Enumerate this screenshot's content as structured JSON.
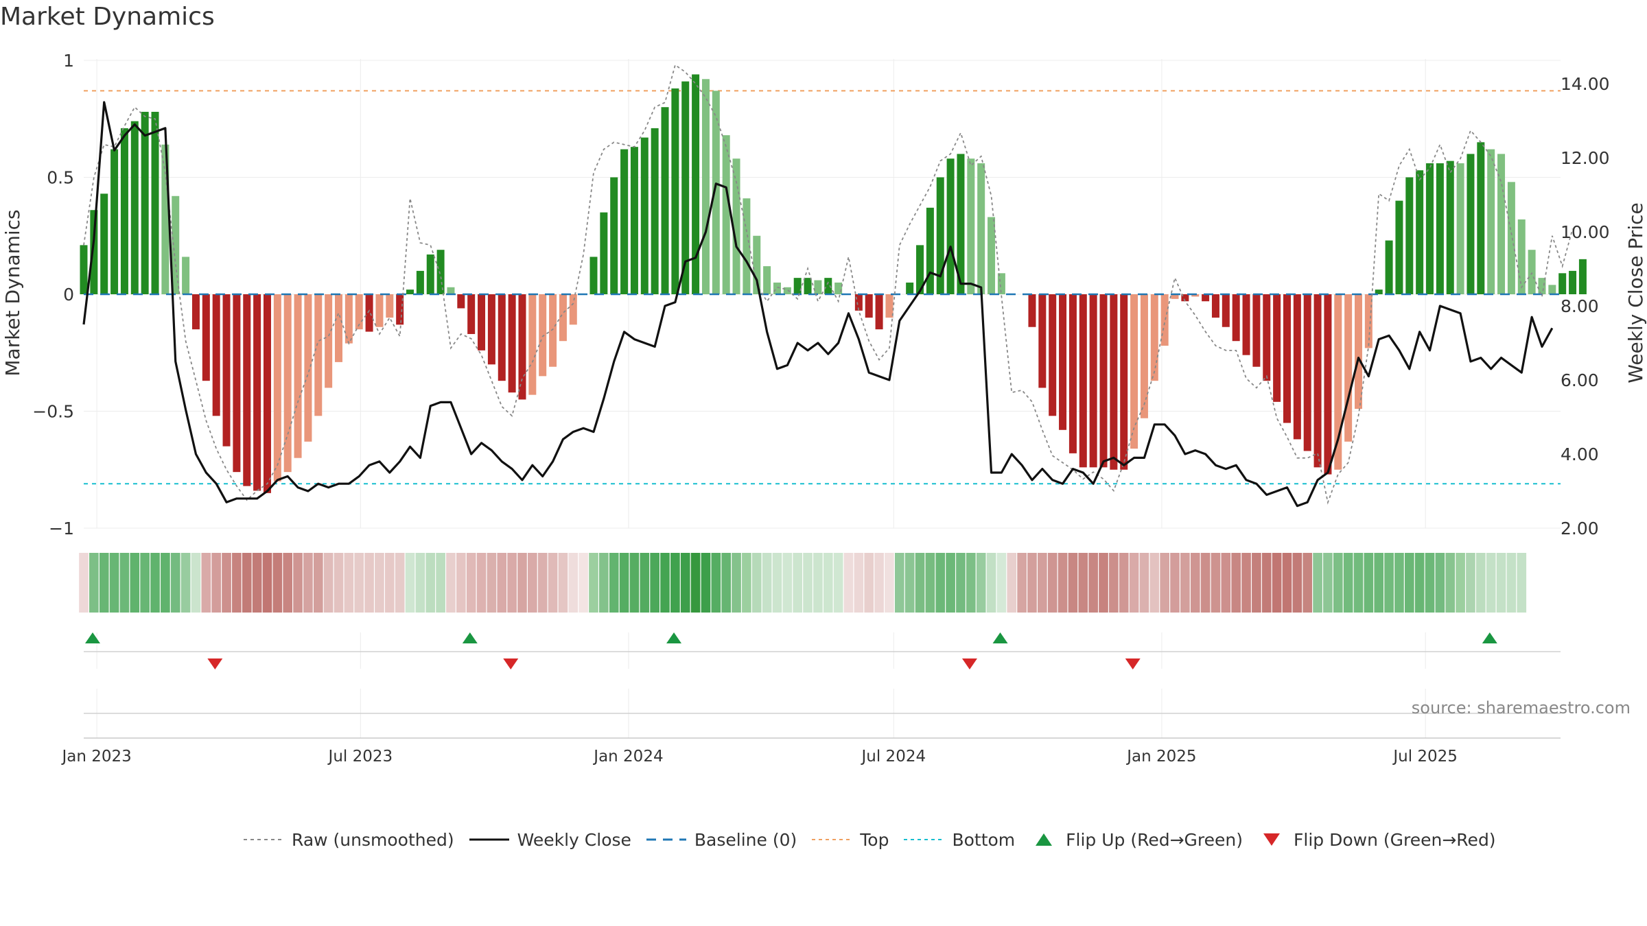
{
  "title": "Market Dynamics",
  "source": "source: sharemaestro.com",
  "legend": {
    "raw": "Raw (unsmoothed)",
    "close": "Weekly Close",
    "baseline": "Baseline (0)",
    "top": "Top",
    "bottom": "Bottom",
    "flip_up": "Flip Up (Red→Green)",
    "flip_down": "Flip Down (Green→Red)"
  },
  "colors": {
    "pos_strong": "#228b22",
    "pos_fade": "#80c080",
    "neg_strong": "#b22222",
    "neg_fade": "#e9967a",
    "raw": "#888888",
    "close": "#111111",
    "baseline": "#1f77b4",
    "top": "#f0a060",
    "bottom": "#17becf",
    "flip_up": "#1a9641",
    "flip_down": "#d62728"
  },
  "chart_data": {
    "type": "bar",
    "title": "Market Dynamics",
    "ylabel": "Market Dynamics",
    "y2label": "Weekly Close Price",
    "ylim": [
      -1,
      1
    ],
    "y2lim": [
      2.0,
      14.0
    ],
    "yticks": [
      "1",
      "0.5",
      "0",
      "−0.5",
      "−1"
    ],
    "y2ticks": [
      "14.00",
      "12.00",
      "10.00",
      "8.00",
      "6.00",
      "4.00",
      "2.00"
    ],
    "xticks": [
      {
        "label": "Jan 2023",
        "date": "2023-01-01"
      },
      {
        "label": "Jul 2023",
        "date": "2023-07-01"
      },
      {
        "label": "Jan 2024",
        "date": "2024-01-01"
      },
      {
        "label": "Jul 2024",
        "date": "2024-07-01"
      },
      {
        "label": "Jan 2025",
        "date": "2025-01-01"
      },
      {
        "label": "Jul 2025",
        "date": "2025-07-01"
      }
    ],
    "start_date": "2022-12-23",
    "week_days": 7,
    "top_line": 0.87,
    "bottom_line": -0.81,
    "baseline": 0,
    "grid": true,
    "legend_position": "bottom",
    "series": [
      {
        "name": "Market Dynamics",
        "values": [
          0.21,
          0.36,
          0.43,
          0.62,
          0.71,
          0.74,
          0.78,
          0.78,
          0.64,
          0.42,
          0.16,
          -0.15,
          -0.37,
          -0.52,
          -0.65,
          -0.76,
          -0.82,
          -0.84,
          -0.85,
          -0.8,
          -0.76,
          -0.7,
          -0.63,
          -0.52,
          -0.4,
          -0.29,
          -0.21,
          -0.15,
          -0.16,
          -0.14,
          -0.1,
          -0.13,
          0.02,
          0.1,
          0.17,
          0.19,
          0.03,
          -0.06,
          -0.17,
          -0.24,
          -0.3,
          -0.37,
          -0.42,
          -0.45,
          -0.43,
          -0.35,
          -0.31,
          -0.2,
          -0.13,
          0.0,
          0.16,
          0.35,
          0.5,
          0.62,
          0.63,
          0.67,
          0.71,
          0.8,
          0.88,
          0.91,
          0.94,
          0.92,
          0.87,
          0.68,
          0.58,
          0.41,
          0.25,
          0.12,
          0.05,
          0.03,
          0.07,
          0.07,
          0.06,
          0.07,
          0.05,
          0.0,
          -0.07,
          -0.1,
          -0.15,
          -0.1,
          0.0,
          0.05,
          0.21,
          0.37,
          0.5,
          0.58,
          0.6,
          0.58,
          0.56,
          0.33,
          0.09,
          0.0,
          0.0,
          -0.14,
          -0.4,
          -0.52,
          -0.58,
          -0.68,
          -0.74,
          -0.74,
          -0.74,
          -0.75,
          -0.75,
          -0.66,
          -0.53,
          -0.37,
          -0.22,
          -0.02,
          -0.03,
          -0.01,
          -0.03,
          -0.1,
          -0.14,
          -0.2,
          -0.26,
          -0.31,
          -0.37,
          -0.46,
          -0.55,
          -0.62,
          -0.67,
          -0.74,
          -0.77,
          -0.75,
          -0.63,
          -0.49,
          -0.23,
          0.02,
          0.23,
          0.4,
          0.5,
          0.53,
          0.56,
          0.56,
          0.57,
          0.56,
          0.6,
          0.65,
          0.62,
          0.6,
          0.48,
          0.32,
          0.19,
          0.07,
          0.04,
          0.09,
          0.1,
          0.15
        ]
      },
      {
        "name": "Raw (unsmoothed)",
        "values": [
          0.21,
          0.5,
          0.64,
          0.63,
          0.72,
          0.8,
          0.76,
          0.75,
          0.52,
          0.13,
          -0.2,
          -0.37,
          -0.54,
          -0.66,
          -0.75,
          -0.82,
          -0.88,
          -0.84,
          -0.81,
          -0.73,
          -0.6,
          -0.46,
          -0.34,
          -0.2,
          -0.18,
          -0.08,
          -0.21,
          -0.13,
          -0.07,
          -0.17,
          -0.1,
          -0.18,
          0.41,
          0.22,
          0.21,
          0.08,
          -0.23,
          -0.17,
          -0.19,
          -0.26,
          -0.37,
          -0.48,
          -0.52,
          -0.36,
          -0.29,
          -0.18,
          -0.15,
          -0.08,
          -0.04,
          0.17,
          0.52,
          0.62,
          0.65,
          0.64,
          0.63,
          0.7,
          0.8,
          0.82,
          0.98,
          0.95,
          0.9,
          0.84,
          0.76,
          0.63,
          0.48,
          0.27,
          0.04,
          -0.03,
          0.03,
          0.02,
          -0.02,
          0.11,
          -0.03,
          0.05,
          -0.03,
          0.16,
          -0.07,
          -0.2,
          -0.28,
          -0.23,
          0.21,
          0.3,
          0.38,
          0.46,
          0.57,
          0.6,
          0.69,
          0.55,
          0.59,
          0.42,
          -0.01,
          -0.42,
          -0.41,
          -0.46,
          -0.58,
          -0.69,
          -0.72,
          -0.75,
          -0.79,
          -0.76,
          -0.79,
          -0.84,
          -0.72,
          -0.57,
          -0.47,
          -0.33,
          -0.12,
          0.07,
          -0.03,
          -0.09,
          -0.16,
          -0.22,
          -0.24,
          -0.24,
          -0.36,
          -0.4,
          -0.35,
          -0.53,
          -0.61,
          -0.7,
          -0.7,
          -0.68,
          -0.89,
          -0.77,
          -0.72,
          -0.52,
          -0.22,
          0.43,
          0.4,
          0.55,
          0.62,
          0.49,
          0.54,
          0.64,
          0.52,
          0.58,
          0.7,
          0.65,
          0.59,
          0.48,
          0.26,
          0.03,
          0.09,
          -0.01,
          0.25,
          0.12,
          0.28
        ]
      },
      {
        "name": "Weekly Close",
        "values": [
          7.5,
          9.8,
          13.5,
          12.2,
          12.6,
          12.9,
          12.6,
          12.7,
          12.8,
          6.5,
          5.2,
          4.0,
          3.5,
          3.2,
          2.7,
          2.8,
          2.8,
          2.8,
          3.0,
          3.3,
          3.4,
          3.1,
          3.0,
          3.2,
          3.1,
          3.2,
          3.2,
          3.4,
          3.7,
          3.8,
          3.5,
          3.8,
          4.2,
          3.9,
          5.3,
          5.4,
          5.4,
          4.7,
          4.0,
          4.3,
          4.1,
          3.8,
          3.6,
          3.3,
          3.7,
          3.4,
          3.8,
          4.4,
          4.6,
          4.7,
          4.6,
          5.5,
          6.5,
          7.3,
          7.1,
          7.0,
          6.9,
          8.0,
          8.1,
          9.2,
          9.3,
          10.0,
          11.3,
          11.2,
          9.6,
          9.2,
          8.7,
          7.3,
          6.3,
          6.4,
          7.0,
          6.8,
          7.0,
          6.7,
          7.0,
          7.8,
          7.1,
          6.2,
          6.1,
          6.0,
          7.6,
          8.0,
          8.4,
          8.9,
          8.8,
          9.6,
          8.6,
          8.6,
          8.5,
          3.5,
          3.5,
          4.0,
          3.7,
          3.3,
          3.6,
          3.3,
          3.2,
          3.6,
          3.5,
          3.2,
          3.8,
          3.9,
          3.7,
          3.9,
          3.9,
          4.8,
          4.8,
          4.5,
          4.0,
          4.1,
          4.0,
          3.7,
          3.6,
          3.7,
          3.3,
          3.2,
          2.9,
          3.0,
          3.1,
          2.6,
          2.7,
          3.3,
          3.5,
          4.4,
          5.5,
          6.6,
          6.1,
          7.1,
          7.2,
          6.8,
          6.3,
          7.3,
          6.8,
          8.0,
          7.9,
          7.8,
          6.5,
          6.6,
          6.3,
          6.6,
          6.4,
          6.2,
          7.7,
          6.9,
          7.4
        ]
      }
    ],
    "band_colors": [
      "#eed8d8",
      "#7dbf86",
      "#68b674",
      "#68b674",
      "#6cb878",
      "#60b36d",
      "#68b674",
      "#60b36d",
      "#60b36d",
      "#74bb80",
      "#98cc9f",
      "#cbe4cd",
      "#d9aaa8",
      "#d39d9b",
      "#cd908d",
      "#c7837f",
      "#c27b77",
      "#c27b77",
      "#c17672",
      "#c47d79",
      "#c88581",
      "#cf9592",
      "#d5a3a1",
      "#d39f9c",
      "#e0bcba",
      "#e3c2c0",
      "#e6c9c7",
      "#e6cbc9",
      "#e6c9c7",
      "#e6cbc9",
      "#e6c9c7",
      "#e6cbc9",
      "#cfe6d1",
      "#c4e1c7",
      "#bcddbf",
      "#bcddbf",
      "#e8cfcd",
      "#e5c5c3",
      "#e0b9b7",
      "#ddb2b0",
      "#dab0ad",
      "#d9aaa8",
      "#d9aaa8",
      "#d6a5a2",
      "#d9aaa8",
      "#dbb0ae",
      "#e0bab8",
      "#e5c6c4",
      "#efdddc",
      "#f3e4e3",
      "#9ccf9f",
      "#83c28b",
      "#62b46f",
      "#55ad62",
      "#56ad62",
      "#53ab60",
      "#4ca85a",
      "#44a452",
      "#40a24e",
      "#3d9f4a",
      "#36983e",
      "#3d9f4a",
      "#55ad62",
      "#66b572",
      "#84c28c",
      "#9ccf9f",
      "#b6dab9",
      "#c6e2c9",
      "#cce5ce",
      "#d0e7d2",
      "#cce5ce",
      "#cce5ce",
      "#cce5ce",
      "#cde6cf",
      "#d0e7d2",
      "#eedcdb",
      "#ecd7d6",
      "#e8cfcd",
      "#ecd7d6",
      "#f0e0df",
      "#8fc797",
      "#8bc593",
      "#7abd83",
      "#77bc80",
      "#6cb878",
      "#6cb878",
      "#74bb80",
      "#7dbf86",
      "#98cc9f",
      "#c2e0c5",
      "#d5e9d7",
      "#e8cfcd",
      "#d6a5a2",
      "#d39f9c",
      "#d39f9c",
      "#cf9592",
      "#cc8f8b",
      "#c88783",
      "#c88783",
      "#c88783",
      "#c7837f",
      "#cc8f8b",
      "#d09794",
      "#d9aaa8",
      "#dbb1af",
      "#e3c2c0",
      "#d6a5a2",
      "#d39d9b",
      "#d39f9c",
      "#cf9592",
      "#cc8f8b",
      "#ce938f",
      "#cd908d",
      "#c88783",
      "#c88581",
      "#c4807c",
      "#c27b77",
      "#c17672",
      "#c17672",
      "#c27b77",
      "#c68580",
      "#8dc695",
      "#8dc695",
      "#7dbf86",
      "#72bb7d",
      "#72bb7d",
      "#6cb878",
      "#6cb878",
      "#72bb7d",
      "#72bb7d",
      "#6ab776",
      "#68b674",
      "#6cb878",
      "#74bb80",
      "#88c48f",
      "#9ccf9f",
      "#acd4b0",
      "#bcddbf",
      "#c4e1c7",
      "#c4e1c7",
      "#c4e1c7",
      "#c4e1c7"
    ],
    "flips": {
      "up": [
        0,
        37,
        57,
        89,
        137
      ],
      "down": [
        12,
        41,
        86,
        102
      ]
    }
  }
}
